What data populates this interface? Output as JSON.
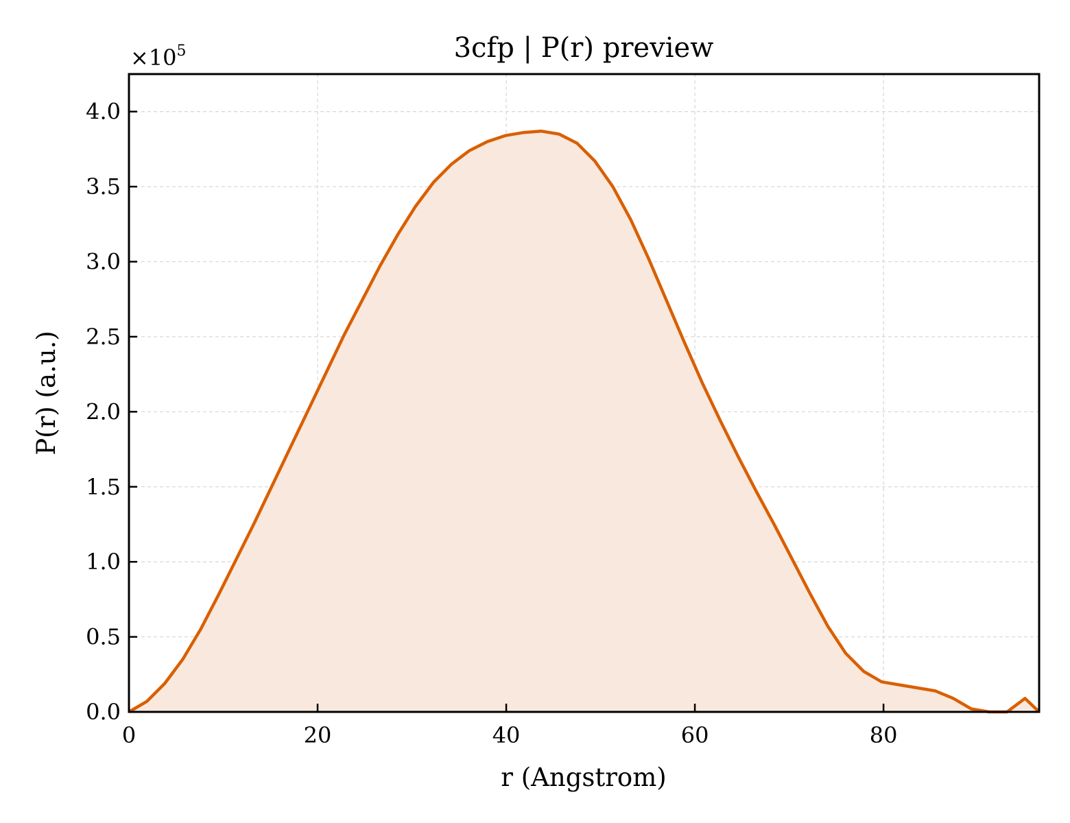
{
  "chart_data": {
    "type": "area",
    "title": "3cfp | P(r) preview",
    "xlabel": "r (Angstrom)",
    "ylabel": "P(r) (a.u.)",
    "y_offset_label": {
      "prefix": "×10",
      "exponent": "5"
    },
    "xlim": [
      0,
      96.5
    ],
    "ylim": [
      0,
      4.25
    ],
    "y_scale_note": "values in units of 1e5",
    "grid": true,
    "legend": "none",
    "x_ticks": [
      "0",
      "20",
      "40",
      "60",
      "80"
    ],
    "x_tick_values": [
      0,
      20,
      40,
      60,
      80
    ],
    "y_ticks": [
      "0.0",
      "0.5",
      "1.0",
      "1.5",
      "2.0",
      "2.5",
      "3.0",
      "3.5",
      "4.0"
    ],
    "y_tick_values": [
      0,
      0.5,
      1.0,
      1.5,
      2.0,
      2.5,
      3.0,
      3.5,
      4.0
    ],
    "colors": {
      "line": "#d95f02",
      "fill": "#f8e8dd",
      "grid": "#d9d9d9"
    },
    "series": [
      {
        "x": [
          0,
          1.9,
          3.8,
          5.7,
          7.6,
          9.5,
          11.4,
          13.3,
          15.2,
          17.1,
          19.0,
          20.9,
          22.8,
          24.7,
          26.6,
          28.5,
          30.4,
          32.3,
          34.2,
          36.1,
          38.0,
          39.9,
          41.8,
          43.7,
          45.6,
          47.5,
          49.4,
          51.3,
          53.2,
          55.1,
          57.0,
          58.9,
          60.8,
          62.7,
          64.6,
          66.5,
          68.4,
          70.3,
          72.2,
          74.1,
          76.0,
          77.9,
          79.8,
          81.7,
          83.6,
          85.5,
          87.4,
          89.3,
          91.2,
          93.1,
          95.0,
          96.5
        ],
        "y": [
          0.0,
          0.07,
          0.19,
          0.35,
          0.55,
          0.78,
          1.02,
          1.26,
          1.51,
          1.76,
          2.01,
          2.26,
          2.51,
          2.74,
          2.97,
          3.18,
          3.37,
          3.53,
          3.65,
          3.74,
          3.8,
          3.84,
          3.86,
          3.87,
          3.85,
          3.79,
          3.67,
          3.5,
          3.28,
          3.02,
          2.74,
          2.46,
          2.19,
          1.94,
          1.7,
          1.47,
          1.25,
          1.02,
          0.79,
          0.57,
          0.39,
          0.27,
          0.2,
          0.18,
          0.16,
          0.14,
          0.09,
          0.02,
          0.0,
          0.0,
          0.09,
          0.0
        ]
      }
    ]
  }
}
